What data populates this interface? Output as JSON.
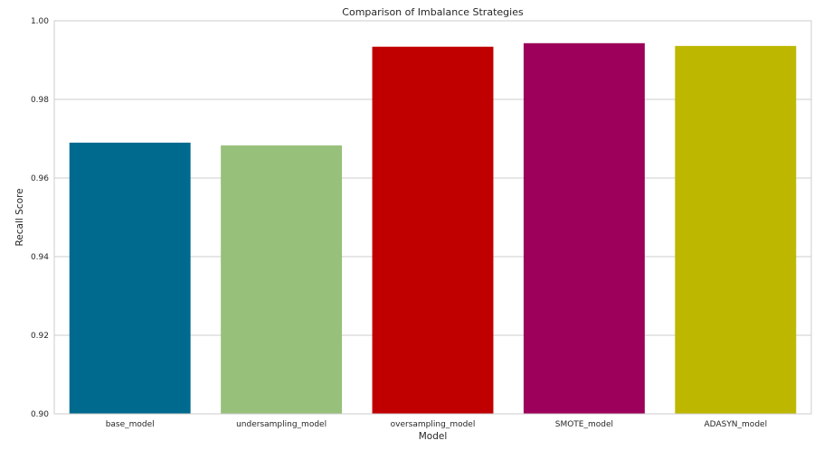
{
  "chart_data": {
    "type": "bar",
    "title": "Comparison of Imbalance Strategies",
    "xlabel": "Model",
    "ylabel": "Recall Score",
    "categories": [
      "base_model",
      "undersampling_model",
      "oversampling_model",
      "SMOTE_model",
      "ADASYN_model"
    ],
    "values": [
      0.969,
      0.9683,
      0.9934,
      0.9943,
      0.9936
    ],
    "colors": [
      "#006a8e",
      "#97c07b",
      "#c00000",
      "#9c005a",
      "#bdb700"
    ],
    "ylim": [
      0.9,
      1.0
    ],
    "yticks": [
      "0.90",
      "0.92",
      "0.94",
      "0.96",
      "0.98",
      "1.00"
    ],
    "grid": "horizontal",
    "background": "#ffffff",
    "gridColor": "#cccccc",
    "spineColor": "#cccccc",
    "textColor": "#262626"
  }
}
